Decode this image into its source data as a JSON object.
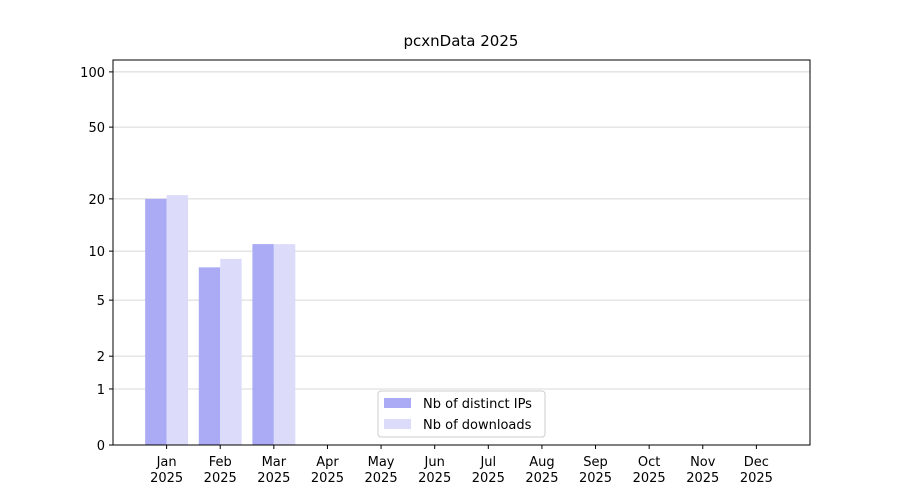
{
  "chart_data": {
    "type": "bar",
    "title": "pcxnData 2025",
    "categories": [
      "Jan 2025",
      "Feb 2025",
      "Mar 2025",
      "Apr 2025",
      "May 2025",
      "Jun 2025",
      "Jul 2025",
      "Aug 2025",
      "Sep 2025",
      "Oct 2025",
      "Nov 2025",
      "Dec 2025"
    ],
    "series": [
      {
        "name": "Nb of distinct IPs",
        "color": "#aaaaf5",
        "values": [
          20,
          8,
          11,
          null,
          null,
          null,
          null,
          null,
          null,
          null,
          null,
          null
        ]
      },
      {
        "name": "Nb of downloads",
        "color": "#dcdcfa",
        "values": [
          21,
          9,
          11,
          null,
          null,
          null,
          null,
          null,
          null,
          null,
          null,
          null
        ]
      }
    ],
    "yscale": "log1p",
    "ylim": [
      0,
      116
    ],
    "yticks": [
      0,
      1,
      2,
      5,
      10,
      20,
      50,
      100
    ],
    "grid": true,
    "legend": "lower center"
  }
}
